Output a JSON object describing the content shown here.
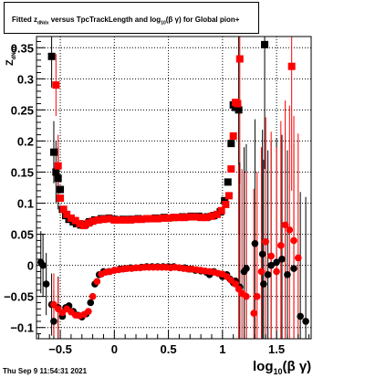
{
  "title": {
    "prefix": "Fitted  z",
    "sub1": "dNdx",
    "middle": " versus TpcTrackLength and log",
    "sub2": "10",
    "suffix": "(β γ) for Global pion+"
  },
  "ylabel": {
    "main": "Z",
    "sub": "dNdx"
  },
  "xlabel": {
    "main": "log",
    "sub": "10",
    "suffix": "(β γ)"
  },
  "datestamp": "Thu Sep  9 11:54:31 2021",
  "chart_data": {
    "type": "scatter",
    "title": "Fitted z_dNdx versus TpcTrackLength and log10(β γ) for Global pion+",
    "xlabel": "log10(β γ)",
    "ylabel": "Z_dNdx",
    "xlim": [
      -0.72,
      1.82
    ],
    "ylim": [
      -0.118,
      0.368
    ],
    "xticks": [
      -0.5,
      0,
      0.5,
      1,
      1.5
    ],
    "xtick_labels": [
      "−0.5",
      "0",
      "0.5",
      "1",
      "1.5"
    ],
    "yticks": [
      -0.1,
      -0.05,
      0,
      0.05,
      0.1,
      0.15,
      0.2,
      0.25,
      0.3,
      0.35
    ],
    "ytick_labels": [
      "−0.1",
      "−0.05",
      "0",
      "0.05",
      "0.1",
      "0.15",
      "0.2",
      "0.25",
      "0.3",
      "0.35"
    ],
    "grid": true,
    "series": [
      {
        "color": "#000000",
        "marker": "square",
        "points": [
          [
            -0.58,
            0.336
          ],
          [
            -0.56,
            0.182
          ],
          [
            -0.54,
            0.15
          ],
          [
            -0.52,
            0.14
          ],
          [
            -0.5,
            0.122
          ],
          [
            -0.48,
            0.09
          ],
          [
            -0.45,
            0.08
          ],
          [
            -0.42,
            0.074
          ],
          [
            -0.38,
            0.07
          ],
          [
            -0.35,
            0.067
          ],
          [
            -0.31,
            0.065
          ],
          [
            -0.27,
            0.066
          ],
          [
            -0.23,
            0.07
          ],
          [
            -0.18,
            0.073
          ],
          [
            -0.12,
            0.075
          ],
          [
            -0.05,
            0.076
          ],
          [
            0.0,
            0.074
          ],
          [
            0.08,
            0.074
          ],
          [
            0.15,
            0.074
          ],
          [
            0.22,
            0.075
          ],
          [
            0.3,
            0.075
          ],
          [
            0.38,
            0.076
          ],
          [
            0.46,
            0.077
          ],
          [
            0.55,
            0.077
          ],
          [
            0.63,
            0.078
          ],
          [
            0.71,
            0.079
          ],
          [
            0.78,
            0.079
          ],
          [
            0.86,
            0.078
          ],
          [
            0.92,
            0.08
          ],
          [
            0.98,
            0.086
          ],
          [
            1.02,
            0.104
          ],
          [
            1.05,
            0.134
          ],
          [
            1.08,
            0.196
          ],
          [
            1.1,
            0.258
          ],
          [
            1.12,
            0.254
          ],
          [
            1.15,
            0.25
          ],
          [
            1.39,
            0.355
          ]
        ]
      },
      {
        "color": "#ff0000",
        "marker": "square",
        "points": [
          [
            -0.54,
            0.29
          ],
          [
            -0.52,
            0.16
          ],
          [
            -0.5,
            0.108
          ],
          [
            -0.47,
            0.09
          ],
          [
            -0.44,
            0.082
          ],
          [
            -0.4,
            0.076
          ],
          [
            -0.36,
            0.072
          ],
          [
            -0.32,
            0.067
          ],
          [
            -0.28,
            0.064
          ],
          [
            -0.24,
            0.068
          ],
          [
            -0.2,
            0.071
          ],
          [
            -0.15,
            0.073
          ],
          [
            -0.1,
            0.074
          ],
          [
            -0.05,
            0.075
          ],
          [
            0.0,
            0.073
          ],
          [
            0.05,
            0.073
          ],
          [
            0.1,
            0.073
          ],
          [
            0.15,
            0.073
          ],
          [
            0.2,
            0.074
          ],
          [
            0.25,
            0.074
          ],
          [
            0.3,
            0.075
          ],
          [
            0.35,
            0.075
          ],
          [
            0.4,
            0.075
          ],
          [
            0.45,
            0.076
          ],
          [
            0.5,
            0.076
          ],
          [
            0.55,
            0.077
          ],
          [
            0.6,
            0.077
          ],
          [
            0.65,
            0.077
          ],
          [
            0.7,
            0.078
          ],
          [
            0.75,
            0.078
          ],
          [
            0.8,
            0.077
          ],
          [
            0.85,
            0.077
          ],
          [
            0.9,
            0.079
          ],
          [
            0.95,
            0.082
          ],
          [
            0.99,
            0.088
          ],
          [
            1.03,
            0.098
          ],
          [
            1.06,
            0.112
          ],
          [
            1.08,
            0.155
          ],
          [
            1.1,
            0.208
          ],
          [
            1.12,
            0.262
          ],
          [
            1.14,
            0.26
          ],
          [
            1.16,
            0.332
          ],
          [
            1.64,
            0.32
          ]
        ]
      },
      {
        "color": "#000000",
        "marker": "circle",
        "points": [
          [
            -0.68,
            0.005
          ],
          [
            -0.66,
            0.0
          ],
          [
            -0.63,
            -0.03
          ],
          [
            -0.58,
            -0.063
          ],
          [
            -0.56,
            -0.09
          ],
          [
            -0.52,
            -0.068
          ],
          [
            -0.48,
            -0.082
          ],
          [
            -0.45,
            -0.068
          ],
          [
            -0.42,
            -0.065
          ],
          [
            -0.38,
            -0.074
          ],
          [
            -0.34,
            -0.08
          ],
          [
            -0.3,
            -0.083
          ],
          [
            -0.26,
            -0.078
          ],
          [
            -0.22,
            -0.06
          ],
          [
            -0.18,
            -0.03
          ],
          [
            -0.14,
            -0.015
          ],
          [
            -0.1,
            -0.01
          ],
          [
            -0.05,
            -0.01
          ],
          [
            0.0,
            -0.008
          ],
          [
            0.05,
            -0.006
          ],
          [
            0.1,
            -0.005
          ],
          [
            0.15,
            -0.004
          ],
          [
            0.2,
            -0.004
          ],
          [
            0.25,
            -0.003
          ],
          [
            0.3,
            -0.002
          ],
          [
            0.35,
            -0.002
          ],
          [
            0.4,
            -0.002
          ],
          [
            0.45,
            -0.002
          ],
          [
            0.5,
            -0.002
          ],
          [
            0.55,
            -0.002
          ],
          [
            0.6,
            -0.004
          ],
          [
            0.65,
            -0.004
          ],
          [
            0.7,
            -0.006
          ],
          [
            0.75,
            -0.008
          ],
          [
            0.8,
            -0.009
          ],
          [
            0.85,
            -0.011
          ],
          [
            0.88,
            -0.015
          ],
          [
            0.92,
            -0.01
          ],
          [
            0.96,
            -0.013
          ],
          [
            1.0,
            -0.018
          ],
          [
            1.04,
            -0.015
          ],
          [
            1.07,
            -0.022
          ],
          [
            1.1,
            -0.028
          ],
          [
            1.12,
            -0.025
          ],
          [
            1.16,
            -0.035
          ],
          [
            1.2,
            -0.01
          ],
          [
            1.22,
            -0.005
          ],
          [
            1.3,
            0.035
          ],
          [
            1.37,
            0.018
          ],
          [
            1.38,
            -0.03
          ],
          [
            1.42,
            -0.015
          ],
          [
            1.45,
            0.0
          ],
          [
            1.5,
            0.005
          ],
          [
            1.55,
            0.01
          ],
          [
            1.6,
            -0.015
          ],
          [
            1.66,
            -0.005
          ],
          [
            1.72,
            -0.082
          ],
          [
            1.77,
            -0.09
          ]
        ]
      },
      {
        "color": "#ff0000",
        "marker": "circle",
        "points": [
          [
            -0.56,
            -0.063
          ],
          [
            -0.52,
            -0.07
          ],
          [
            -0.48,
            -0.076
          ],
          [
            -0.44,
            -0.07
          ],
          [
            -0.4,
            -0.075
          ],
          [
            -0.36,
            -0.08
          ],
          [
            -0.32,
            -0.081
          ],
          [
            -0.28,
            -0.079
          ],
          [
            -0.24,
            -0.074
          ],
          [
            -0.2,
            -0.05
          ],
          [
            -0.16,
            -0.026
          ],
          [
            -0.12,
            -0.014
          ],
          [
            -0.08,
            -0.011
          ],
          [
            -0.04,
            -0.01
          ],
          [
            0.0,
            -0.008
          ],
          [
            0.04,
            -0.007
          ],
          [
            0.08,
            -0.006
          ],
          [
            0.12,
            -0.005
          ],
          [
            0.16,
            -0.005
          ],
          [
            0.2,
            -0.004
          ],
          [
            0.24,
            -0.004
          ],
          [
            0.28,
            -0.003
          ],
          [
            0.32,
            -0.003
          ],
          [
            0.36,
            -0.003
          ],
          [
            0.4,
            -0.003
          ],
          [
            0.44,
            -0.003
          ],
          [
            0.48,
            -0.003
          ],
          [
            0.52,
            -0.004
          ],
          [
            0.56,
            -0.003
          ],
          [
            0.6,
            -0.004
          ],
          [
            0.64,
            -0.005
          ],
          [
            0.68,
            -0.006
          ],
          [
            0.72,
            -0.006
          ],
          [
            0.76,
            -0.007
          ],
          [
            0.8,
            -0.008
          ],
          [
            0.84,
            -0.009
          ],
          [
            0.88,
            -0.01
          ],
          [
            0.92,
            -0.011
          ],
          [
            0.96,
            -0.013
          ],
          [
            1.0,
            -0.014
          ],
          [
            1.04,
            -0.018
          ],
          [
            1.08,
            -0.024
          ],
          [
            1.12,
            -0.03
          ],
          [
            1.15,
            -0.038
          ],
          [
            1.18,
            -0.045
          ],
          [
            1.22,
            -0.05
          ],
          [
            1.29,
            -0.077
          ],
          [
            1.32,
            -0.05
          ],
          [
            1.36,
            -0.01
          ],
          [
            1.4,
            0.038
          ],
          [
            1.45,
            0.015
          ],
          [
            1.5,
            -0.01
          ],
          [
            1.54,
            0.032
          ],
          [
            1.58,
            0.065
          ],
          [
            1.62,
            0.057
          ],
          [
            1.66,
            0.04
          ],
          [
            1.7,
            0.012
          ]
        ]
      }
    ]
  }
}
